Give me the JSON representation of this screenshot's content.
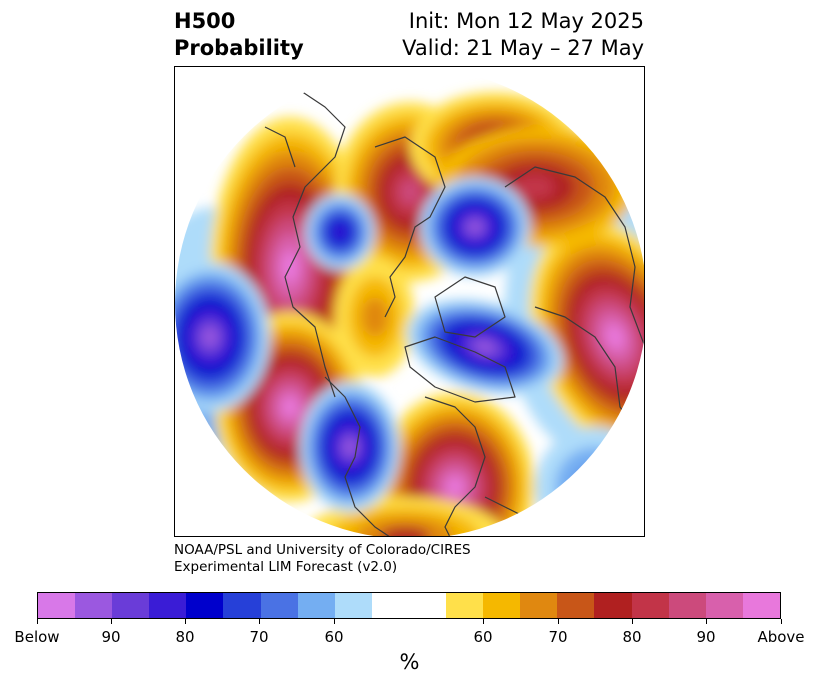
{
  "header": {
    "title_line1": "H500",
    "title_line2": "Probability",
    "init": "Init: Mon 12 May 2025",
    "valid": "Valid: 21 May – 27 May"
  },
  "credit": {
    "line1": "NOAA/PSL and University of Colorado/CIRES",
    "line2": "Experimental LIM Forecast (v2.0)"
  },
  "colorbar": {
    "unit": "%",
    "colors": [
      "#d878e8",
      "#9b58e0",
      "#6a3cd8",
      "#3a1cd6",
      "#0000cc",
      "#2640d8",
      "#4a72e4",
      "#74aef2",
      "#aedcfa",
      "#ffffff",
      "#ffe04a",
      "#f5b800",
      "#e08810",
      "#c85618",
      "#b02020",
      "#c23448",
      "#cc4a7c",
      "#d860ac",
      "#e878dc"
    ],
    "labels": [
      "Below",
      "90",
      "80",
      "70",
      "60",
      "60",
      "70",
      "80",
      "90",
      "Above"
    ]
  },
  "map": {
    "colors": {
      "lightblue": "#aedcfa",
      "blue1": "#74aef2",
      "blue2": "#4a72e4",
      "blue3": "#2640d8",
      "blue4": "#0000cc",
      "purple1": "#3a1cd6",
      "purple2": "#6a3cd8",
      "purple3": "#9b58e0",
      "yellow": "#ffe04a",
      "gold": "#f5b800",
      "orange": "#e08810",
      "darkorange": "#c85618",
      "red": "#b02020",
      "crimson": "#c23448",
      "rose": "#cc4a7c",
      "pink": "#d860ac",
      "magenta": "#e878dc",
      "coast": "#3a3a3a"
    }
  }
}
